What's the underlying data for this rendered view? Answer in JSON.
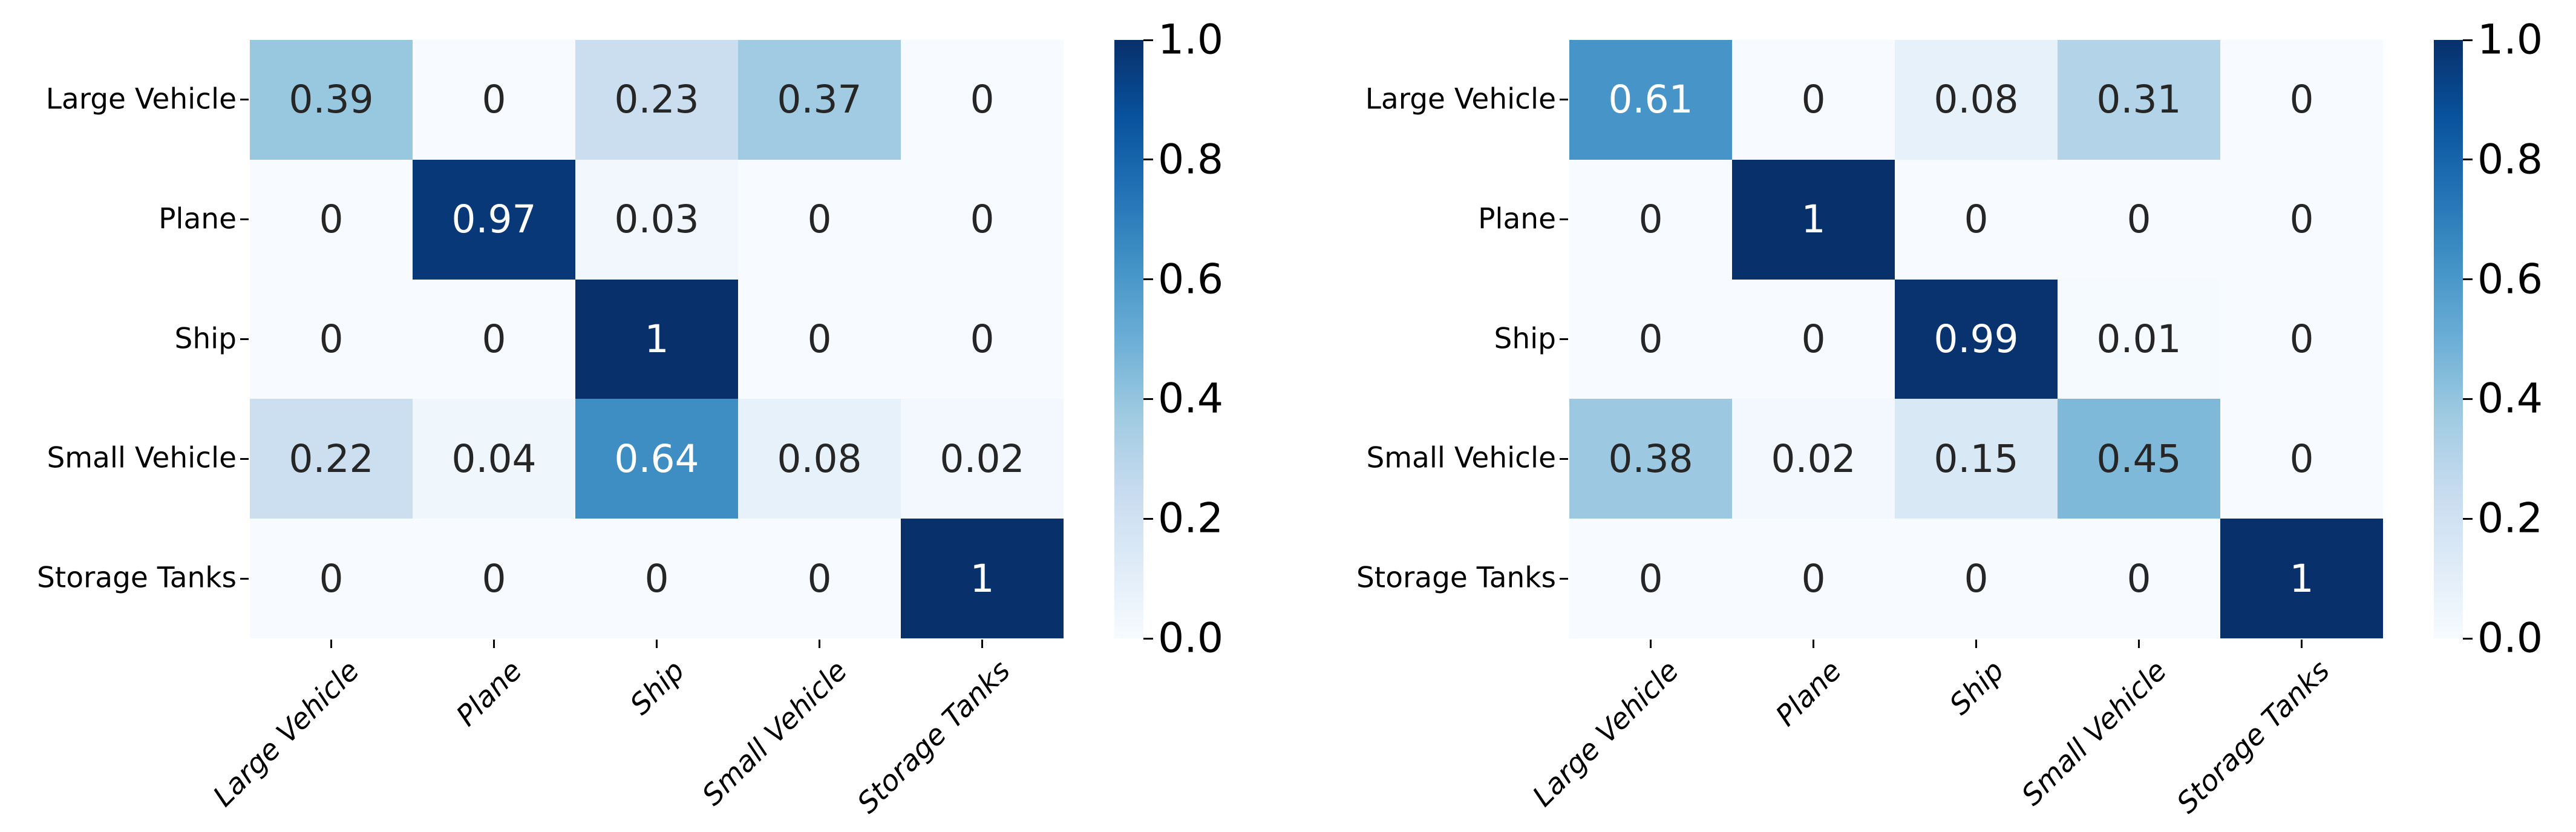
{
  "page": {
    "background": "#ffffff"
  },
  "colors": {
    "colormap_name": "Blues",
    "colormap_stops": [
      "#f7fbff",
      "#deebf7",
      "#c6dbef",
      "#9ecae1",
      "#6baed6",
      "#4292c6",
      "#2171b5",
      "#08519c",
      "#08306b"
    ],
    "annot_dark": "#262626",
    "annot_light": "#ffffff",
    "axis_text": "#000000",
    "tick_mark": "#000000"
  },
  "chart_data": [
    {
      "type": "heatmap",
      "panel": "left",
      "title": "",
      "xlabel": "",
      "ylabel": "",
      "x_categories": [
        "Large Vehicle",
        "Plane",
        "Ship",
        "Small Vehicle",
        "Storage Tanks"
      ],
      "y_categories": [
        "Large Vehicle",
        "Plane",
        "Ship",
        "Small Vehicle",
        "Storage Tanks"
      ],
      "values": [
        [
          0.39,
          0,
          0.23,
          0.37,
          0
        ],
        [
          0,
          0.97,
          0.03,
          0,
          0
        ],
        [
          0,
          0,
          1,
          0,
          0
        ],
        [
          0.22,
          0.04,
          0.64,
          0.08,
          0.02
        ],
        [
          0,
          0,
          0,
          0,
          1
        ]
      ],
      "vmin": 0,
      "vmax": 1,
      "grid": false,
      "colormap": "Blues",
      "legend_position": "right-colorbar",
      "colorbar_ticks": [
        "1.0",
        "0.8",
        "0.6",
        "0.4",
        "0.2",
        "0.0"
      ]
    },
    {
      "type": "heatmap",
      "panel": "right",
      "title": "",
      "xlabel": "",
      "ylabel": "",
      "x_categories": [
        "Large Vehicle",
        "Plane",
        "Ship",
        "Small Vehicle",
        "Storage Tanks"
      ],
      "y_categories": [
        "Large Vehicle",
        "Plane",
        "Ship",
        "Small Vehicle",
        "Storage Tanks"
      ],
      "values": [
        [
          0.61,
          0,
          0.08,
          0.31,
          0
        ],
        [
          0,
          1,
          0,
          0,
          0
        ],
        [
          0,
          0,
          0.99,
          0.01,
          0
        ],
        [
          0.38,
          0.02,
          0.15,
          0.45,
          0
        ],
        [
          0,
          0,
          0,
          0,
          1
        ]
      ],
      "vmin": 0,
      "vmax": 1,
      "grid": false,
      "colormap": "Blues",
      "legend_position": "right-colorbar",
      "colorbar_ticks": [
        "1.0",
        "0.8",
        "0.6",
        "0.4",
        "0.2",
        "0.0"
      ]
    }
  ]
}
